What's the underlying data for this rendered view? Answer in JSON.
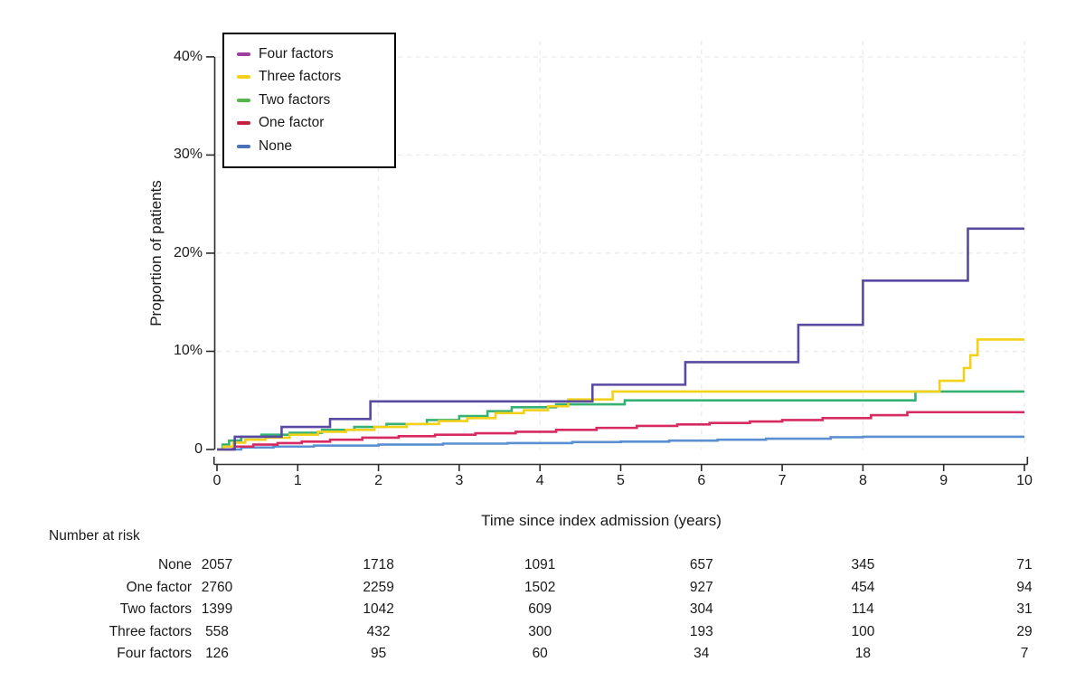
{
  "chart_data": {
    "type": "line",
    "subtype": "step-cumulative-incidence",
    "title": "",
    "xlabel": "Time since index admission (years)",
    "ylabel": "Proportion of patients",
    "x_range": [
      0,
      10
    ],
    "ylim_percent": [
      0,
      40
    ],
    "legend_position": "top-left-inside",
    "grid": {
      "color": "#eaeaea",
      "vertical_years": [
        2,
        4,
        6,
        8,
        10
      ],
      "horizontal_percents": [
        10,
        20,
        30,
        40
      ]
    },
    "axis_color": "#2b2b2b",
    "x_ticks": [
      {
        "value": 0,
        "label": "0"
      },
      {
        "value": 1,
        "label": "1"
      },
      {
        "value": 2,
        "label": "2"
      },
      {
        "value": 3,
        "label": "3"
      },
      {
        "value": 4,
        "label": "4"
      },
      {
        "value": 5,
        "label": "5"
      },
      {
        "value": 6,
        "label": "6"
      },
      {
        "value": 7,
        "label": "7"
      },
      {
        "value": 8,
        "label": "8"
      },
      {
        "value": 9,
        "label": "9"
      },
      {
        "value": 10,
        "label": "10"
      }
    ],
    "y_ticks": [
      {
        "value": 0,
        "label": "0"
      },
      {
        "value": 10,
        "label": "10%"
      },
      {
        "value": 20,
        "label": "20%"
      },
      {
        "value": 30,
        "label": "30%"
      },
      {
        "value": 40,
        "label": "40%"
      }
    ],
    "series": [
      {
        "id": "four-factors",
        "name": "Four factors",
        "color": "#5a49a1",
        "swatch": "#9e3d9e",
        "points": [
          [
            0,
            0
          ],
          [
            0.22,
            1.3
          ],
          [
            0.8,
            2.3
          ],
          [
            1.4,
            3.1
          ],
          [
            1.9,
            4.9
          ],
          [
            4.65,
            6.6
          ],
          [
            5.8,
            8.9
          ],
          [
            7.2,
            12.7
          ],
          [
            8.0,
            17.2
          ],
          [
            9.3,
            22.5
          ],
          [
            10,
            22.5
          ]
        ]
      },
      {
        "id": "three-factors",
        "name": "Three factors",
        "color": "#f3d119",
        "swatch": "#f3d119",
        "points": [
          [
            0,
            0
          ],
          [
            0.08,
            0.3
          ],
          [
            0.2,
            0.7
          ],
          [
            0.35,
            1.0
          ],
          [
            0.6,
            1.2
          ],
          [
            0.9,
            1.5
          ],
          [
            1.25,
            1.8
          ],
          [
            1.6,
            2.0
          ],
          [
            1.95,
            2.3
          ],
          [
            2.35,
            2.6
          ],
          [
            2.75,
            2.9
          ],
          [
            3.1,
            3.2
          ],
          [
            3.45,
            3.7
          ],
          [
            3.8,
            4.0
          ],
          [
            4.1,
            4.4
          ],
          [
            4.35,
            5.1
          ],
          [
            4.9,
            5.9
          ],
          [
            8.95,
            7.0
          ],
          [
            9.25,
            8.3
          ],
          [
            9.33,
            9.6
          ],
          [
            9.42,
            11.2
          ],
          [
            10,
            11.2
          ]
        ]
      },
      {
        "id": "two-factors",
        "name": "Two factors",
        "color": "#34b173",
        "swatch": "#55b44b",
        "points": [
          [
            0,
            0
          ],
          [
            0.07,
            0.5
          ],
          [
            0.15,
            0.9
          ],
          [
            0.3,
            1.3
          ],
          [
            0.55,
            1.5
          ],
          [
            0.9,
            1.7
          ],
          [
            1.3,
            2.0
          ],
          [
            1.7,
            2.3
          ],
          [
            2.1,
            2.6
          ],
          [
            2.6,
            3.0
          ],
          [
            3.0,
            3.4
          ],
          [
            3.35,
            3.9
          ],
          [
            3.65,
            4.3
          ],
          [
            4.2,
            4.6
          ],
          [
            5.05,
            5.0
          ],
          [
            8.65,
            5.9
          ],
          [
            10,
            5.9
          ]
        ]
      },
      {
        "id": "one-factor",
        "name": "One factor",
        "color": "#d62a60",
        "swatch": "#c32042",
        "points": [
          [
            0,
            0
          ],
          [
            0.2,
            0.3
          ],
          [
            0.45,
            0.5
          ],
          [
            0.75,
            0.65
          ],
          [
            1.05,
            0.8
          ],
          [
            1.4,
            1.0
          ],
          [
            1.8,
            1.2
          ],
          [
            2.25,
            1.35
          ],
          [
            2.7,
            1.5
          ],
          [
            3.2,
            1.65
          ],
          [
            3.7,
            1.8
          ],
          [
            4.2,
            2.0
          ],
          [
            4.7,
            2.2
          ],
          [
            5.2,
            2.4
          ],
          [
            5.7,
            2.55
          ],
          [
            6.1,
            2.7
          ],
          [
            6.6,
            2.85
          ],
          [
            7.0,
            3.0
          ],
          [
            7.5,
            3.2
          ],
          [
            8.1,
            3.5
          ],
          [
            8.55,
            3.8
          ],
          [
            10,
            3.8
          ]
        ]
      },
      {
        "id": "none",
        "name": "None",
        "color": "#5a8fd1",
        "swatch": "#4a72ba",
        "points": [
          [
            0,
            0
          ],
          [
            0.3,
            0.2
          ],
          [
            0.7,
            0.3
          ],
          [
            1.2,
            0.4
          ],
          [
            2.0,
            0.5
          ],
          [
            2.8,
            0.6
          ],
          [
            3.6,
            0.65
          ],
          [
            4.4,
            0.75
          ],
          [
            5.0,
            0.8
          ],
          [
            5.6,
            0.9
          ],
          [
            6.2,
            1.0
          ],
          [
            6.8,
            1.1
          ],
          [
            7.6,
            1.25
          ],
          [
            8.0,
            1.3
          ],
          [
            10,
            1.3
          ]
        ]
      }
    ]
  },
  "risk_table": {
    "heading": "Number at risk",
    "time_points_years": [
      0,
      2,
      4,
      6,
      8,
      10
    ],
    "rows": [
      {
        "label": "None",
        "values": [
          "2057",
          "1718",
          "1091",
          "657",
          "345",
          "71"
        ]
      },
      {
        "label": "One factor",
        "values": [
          "2760",
          "2259",
          "1502",
          "927",
          "454",
          "94"
        ]
      },
      {
        "label": "Two factors",
        "values": [
          "1399",
          "1042",
          "609",
          "304",
          "114",
          "31"
        ]
      },
      {
        "label": "Three factors",
        "values": [
          "558",
          "432",
          "300",
          "193",
          "100",
          "29"
        ]
      },
      {
        "label": "Four factors",
        "values": [
          "126",
          "95",
          "60",
          "34",
          "18",
          "7"
        ]
      }
    ]
  }
}
